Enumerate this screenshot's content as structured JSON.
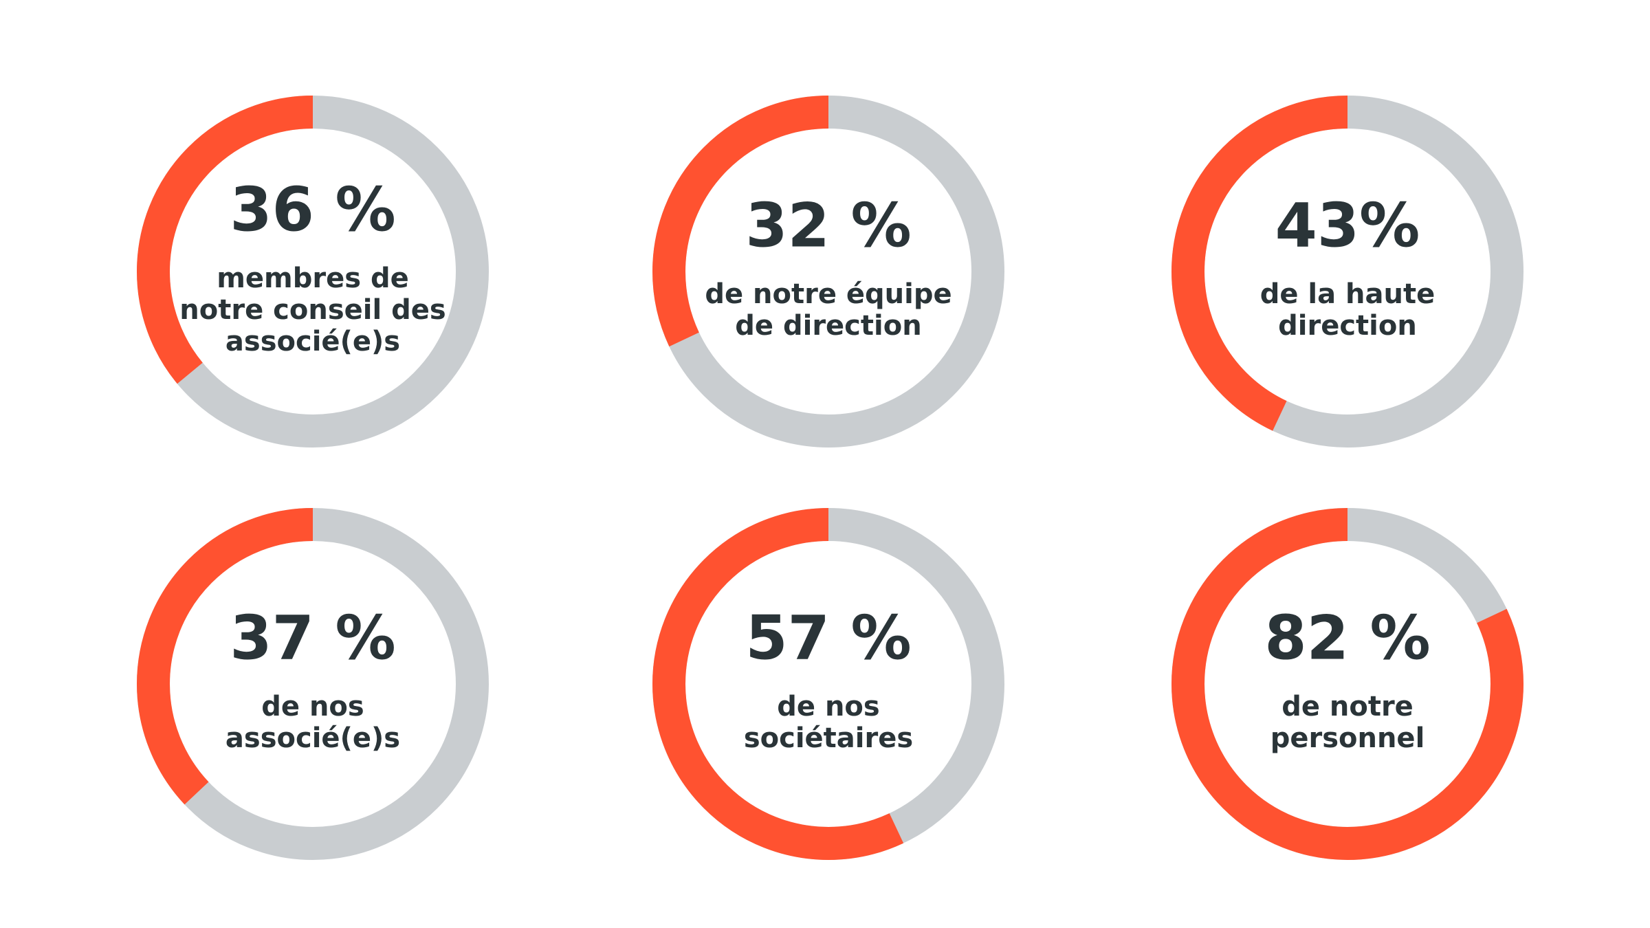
{
  "colors": {
    "accent": "#ff5230",
    "track": "#c9cdd0",
    "text": "#2a3438",
    "background": "#ffffff"
  },
  "chart_data": {
    "type": "pie",
    "variant": "donut-grid",
    "rows": 2,
    "cols": 3,
    "items": [
      {
        "value": 36,
        "display": "36 %",
        "label_lines": [
          "membres de",
          "notre conseil des",
          "associé(e)s"
        ]
      },
      {
        "value": 32,
        "display": "32 %",
        "label_lines": [
          "de notre équipe",
          "de direction"
        ]
      },
      {
        "value": 43,
        "display": "43%",
        "label_lines": [
          "de la haute",
          "direction"
        ]
      },
      {
        "value": 37,
        "display": "37 %",
        "label_lines": [
          "de nos",
          "associé(e)s"
        ]
      },
      {
        "value": 57,
        "display": "57 %",
        "label_lines": [
          "de nos",
          "sociétaires"
        ]
      },
      {
        "value": 82,
        "display": "82 %",
        "label_lines": [
          "de notre",
          "personnel"
        ]
      }
    ]
  }
}
